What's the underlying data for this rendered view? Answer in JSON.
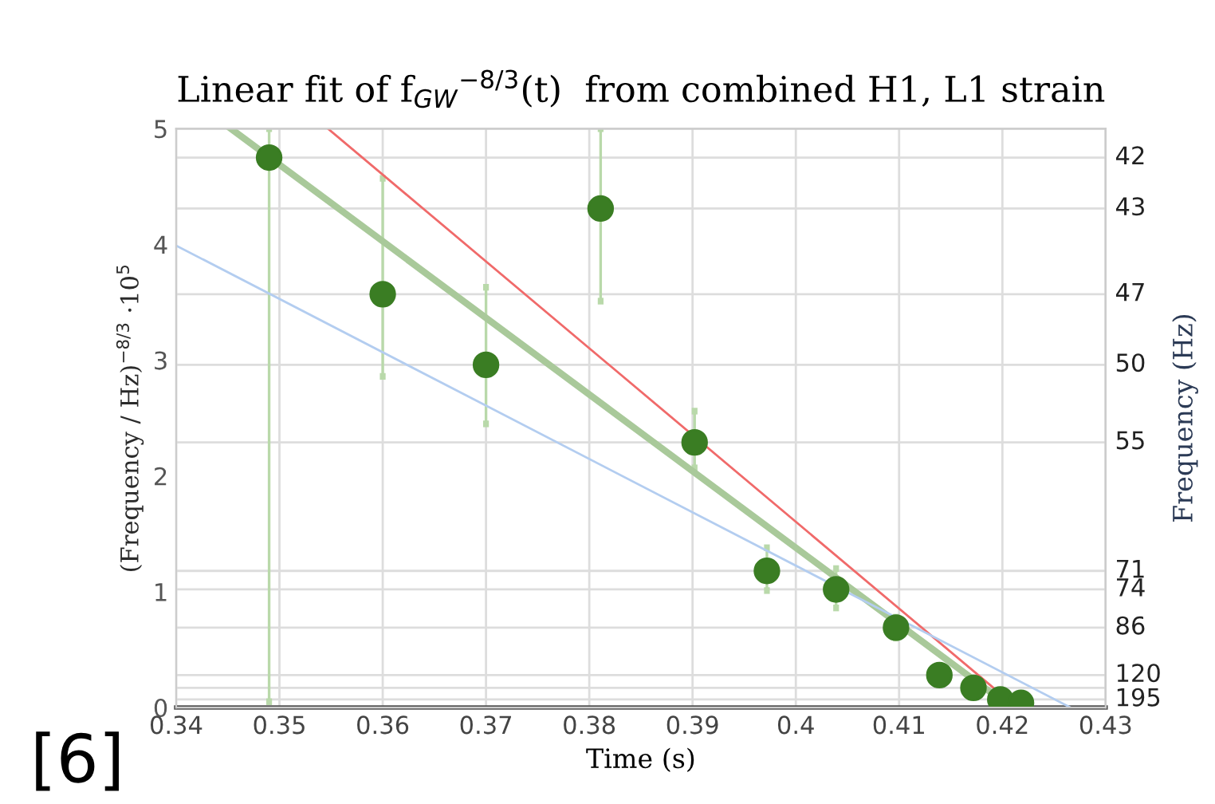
{
  "chart_data": {
    "type": "scatter",
    "title": "Linear fit of f$_{GW}$$^{−8/3}$(t)  from combined H1, L1 strain",
    "xlabel": "Time (s)",
    "ylabel": "(Frequency / Hz)$^{−8/3}$ ·10$^{5}$",
    "y2label": "Frequency (Hz)",
    "annotations": [
      "[6]",
      "42",
      "43",
      "47",
      "50",
      "55",
      "71",
      "74",
      "86",
      "120",
      "195"
    ],
    "xlim": [
      0.34,
      0.43
    ],
    "xticks": [
      0.34,
      0.35,
      0.36,
      0.37,
      0.38,
      0.39,
      0.4,
      0.41,
      0.42,
      0.43
    ],
    "ylim": [
      0,
      5
    ],
    "yticks": [
      0,
      1,
      2,
      3,
      4,
      5
    ],
    "ref_lines": [
      {
        "axis": "y",
        "value": 4.75,
        "color": "#dddddd"
      },
      {
        "axis": "y",
        "value": 4.31,
        "color": "#dddddd"
      },
      {
        "axis": "y",
        "value": 3.57,
        "color": "#dddddd"
      },
      {
        "axis": "y",
        "value": 2.96,
        "color": "#dddddd"
      },
      {
        "axis": "y",
        "value": 2.29,
        "color": "#dddddd"
      },
      {
        "axis": "y",
        "value": 1.18,
        "color": "#dddddd"
      },
      {
        "axis": "y",
        "value": 1.02,
        "color": "#dddddd"
      },
      {
        "axis": "y",
        "value": 0.69,
        "color": "#dddddd"
      },
      {
        "axis": "y",
        "value": 0.28,
        "color": "#dddddd"
      },
      {
        "axis": "y",
        "value": 0.07,
        "color": "#dddddd"
      },
      {
        "axis": "y",
        "value": 0.17,
        "color": "#dddddd"
      }
    ],
    "grid": "x",
    "series": [
      {
        "type": "line",
        "color": "#a9c99a",
        "x": [
          0.3453,
          0.4198
        ],
        "values": [
          5,
          0.07
        ]
      },
      {
        "type": "line",
        "color": "#f06a6a",
        "x": [
          0.3547,
          0.4194
        ],
        "values": [
          5,
          0.15
        ]
      },
      {
        "type": "line",
        "color": "#b3cdf0",
        "x": [
          0.34,
          0.4266
        ],
        "values": [
          3.99,
          0
        ]
      },
      {
        "type": "scatter",
        "marker": "circle",
        "color": "#3a7d23",
        "x": [
          0.349,
          0.36,
          0.37,
          0.3811,
          0.3902,
          0.3972,
          0.4039,
          0.4097,
          0.4139,
          0.4172,
          0.4198,
          0.4218
        ],
        "values": [
          4.75,
          3.57,
          2.96,
          4.31,
          2.29,
          1.18,
          1.02,
          0.69,
          0.28,
          0.17,
          0.07,
          0.04
        ],
        "errors": [
          [
            0.05,
            5.0
          ],
          [
            2.86,
            4.57
          ],
          [
            2.45,
            3.63
          ],
          [
            3.51,
            5.0
          ],
          [
            2.07,
            2.56
          ],
          [
            1.01,
            1.38
          ],
          [
            0.86,
            1.2
          ],
          [
            0.6,
            0.78
          ],
          null,
          null,
          null,
          null
        ]
      }
    ]
  }
}
